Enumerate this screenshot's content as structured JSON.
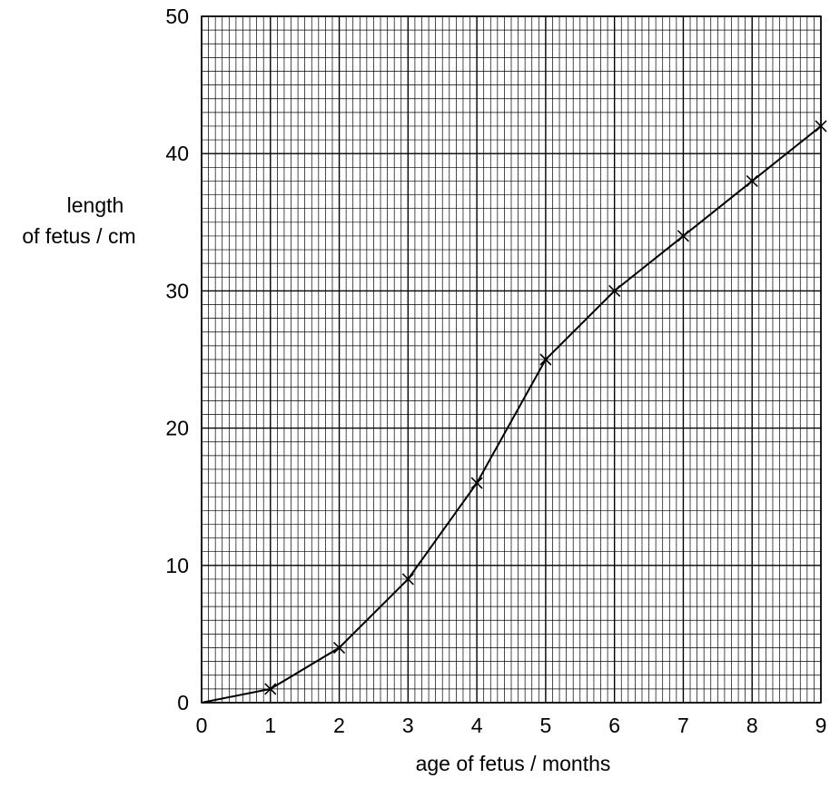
{
  "chart_data": {
    "type": "line",
    "title": "",
    "xlabel": "age of fetus / months",
    "ylabel_line1": "length",
    "ylabel_line2": "of fetus / cm",
    "xlim": [
      0,
      9
    ],
    "ylim": [
      0,
      50
    ],
    "x_ticks": [
      0,
      1,
      2,
      3,
      4,
      5,
      6,
      7,
      8,
      9
    ],
    "y_ticks": [
      0,
      10,
      20,
      30,
      40,
      50
    ],
    "grid": true,
    "series": [
      {
        "x": [
          0,
          1,
          2,
          3,
          4,
          5,
          6,
          7,
          8,
          9
        ],
        "y": [
          0,
          1,
          4,
          9,
          16,
          25,
          30,
          34,
          38,
          42
        ],
        "markers_at": [
          1,
          2,
          3,
          4,
          5,
          6,
          7,
          8,
          9
        ]
      }
    ]
  }
}
